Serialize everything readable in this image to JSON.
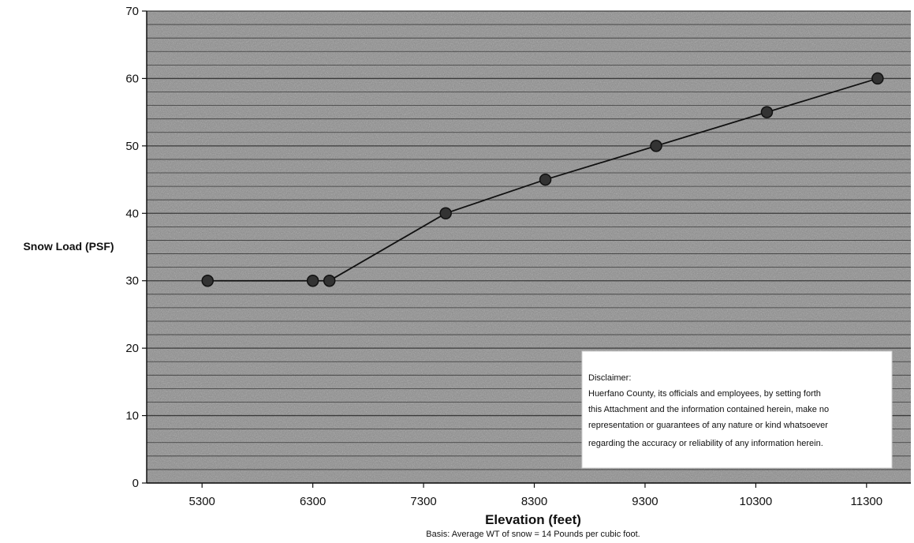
{
  "chart_data": {
    "type": "line",
    "title": "",
    "xlabel": "Elevation (feet)",
    "ylabel": "Snow Load (PSF)",
    "note": "Basis: Average WT of snow = 14 Pounds per cubic foot.",
    "xlim": [
      4800,
      11700
    ],
    "ylim": [
      0,
      70
    ],
    "x_ticks": [
      5300,
      6300,
      7300,
      8300,
      9300,
      10300,
      11300
    ],
    "y_ticks": [
      0,
      10,
      20,
      30,
      40,
      50,
      60,
      70
    ],
    "grid": true,
    "series": [
      {
        "name": "",
        "x": [
          5350,
          6300,
          6450,
          7500,
          8400,
          9400,
          10400,
          11400
        ],
        "y": [
          30,
          30,
          30,
          40,
          45,
          50,
          55,
          60
        ]
      }
    ],
    "disclaimer": {
      "heading": "Disclaimer:",
      "lines": [
        "Huerfano County, its officials and employees, by setting forth",
        "this Attachment and the information contained herein, make no",
        "representation or guarantees of any nature or kind whatsoever",
        "regarding the accuracy or reliability of any information herein."
      ]
    },
    "colors": {
      "plot_background": "#8c8c8c",
      "gridline": "#2a2a2a",
      "line": "#111111",
      "marker": "#333333"
    }
  }
}
